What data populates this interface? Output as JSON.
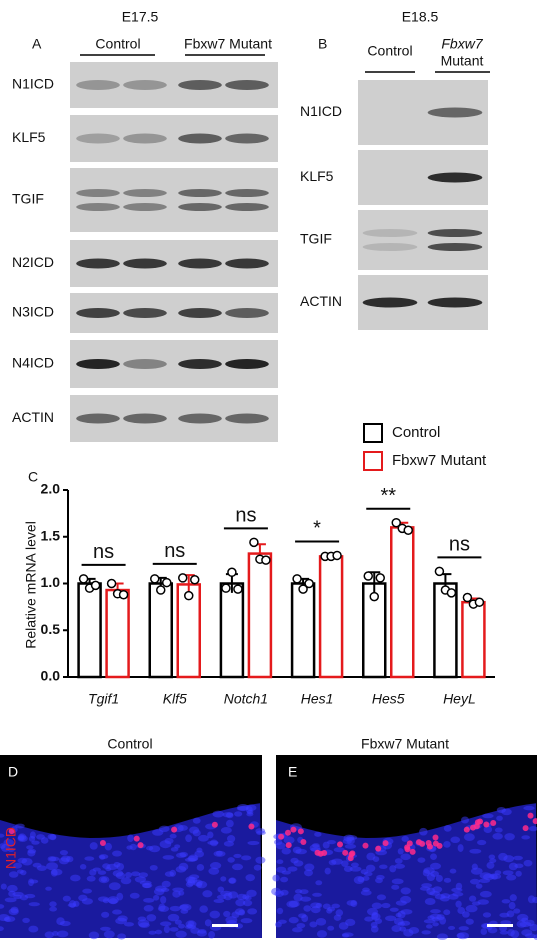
{
  "panel_a": {
    "stage": "E17.5",
    "letter": "A",
    "groups": [
      "Control",
      "Fbxw7 Mutant"
    ],
    "rows": [
      "N1ICD",
      "KLF5",
      "TGIF",
      "N2ICD",
      "N3ICD",
      "N4ICD",
      "ACTIN"
    ]
  },
  "panel_b": {
    "stage": "E18.5",
    "letter": "B",
    "groups": [
      "Control",
      "Fbxw7",
      "Mutant"
    ],
    "rows": [
      "N1ICD",
      "KLF5",
      "TGIF",
      "ACTIN"
    ]
  },
  "chart_data": {
    "type": "bar",
    "letter": "C",
    "ylabel": "Relative mRNA level",
    "categories": [
      "Tgif1",
      "Klf5",
      "Notch1",
      "Hes1",
      "Hes5",
      "HeyL"
    ],
    "series": [
      {
        "name": "Control",
        "color": "#000000",
        "values": [
          1.0,
          1.0,
          1.0,
          1.0,
          1.0,
          1.0
        ],
        "errors": [
          0.05,
          0.06,
          0.1,
          0.05,
          0.12,
          0.1
        ],
        "points": [
          [
            1.05,
            0.95,
            0.98
          ],
          [
            1.05,
            0.93,
            1.01
          ],
          [
            0.95,
            1.12,
            0.94
          ],
          [
            1.05,
            0.94,
            1.0
          ],
          [
            1.08,
            0.86,
            1.06
          ],
          [
            1.13,
            0.93,
            0.9
          ]
        ]
      },
      {
        "name": "Fbxw7 Mutant",
        "color": "#e41a1c",
        "values": [
          0.93,
          0.99,
          1.32,
          1.29,
          1.6,
          0.8
        ],
        "errors": [
          0.07,
          0.1,
          0.1,
          0.01,
          0.05,
          0.04
        ],
        "points": [
          [
            1.0,
            0.89,
            0.88
          ],
          [
            1.06,
            0.87,
            1.04
          ],
          [
            1.44,
            1.26,
            1.25
          ],
          [
            1.29,
            1.29,
            1.3
          ],
          [
            1.65,
            1.59,
            1.57
          ],
          [
            0.85,
            0.78,
            0.8
          ]
        ]
      }
    ],
    "annotations": [
      "ns",
      "ns",
      "ns",
      "*",
      "**",
      "ns"
    ],
    "ylim": [
      0,
      2
    ],
    "yticks": [
      {
        "value": 0,
        "label": "0.0"
      },
      {
        "value": 0.5,
        "label": "0.5"
      },
      {
        "value": 1,
        "label": "1.0"
      },
      {
        "value": 1.5,
        "label": "1.5"
      },
      {
        "value": 2,
        "label": "2.0"
      }
    ]
  },
  "panel_d": {
    "letter": "D",
    "title": "Control",
    "stain": "N1ICD"
  },
  "panel_e": {
    "letter": "E",
    "title": "Fbxw7 Mutant"
  }
}
